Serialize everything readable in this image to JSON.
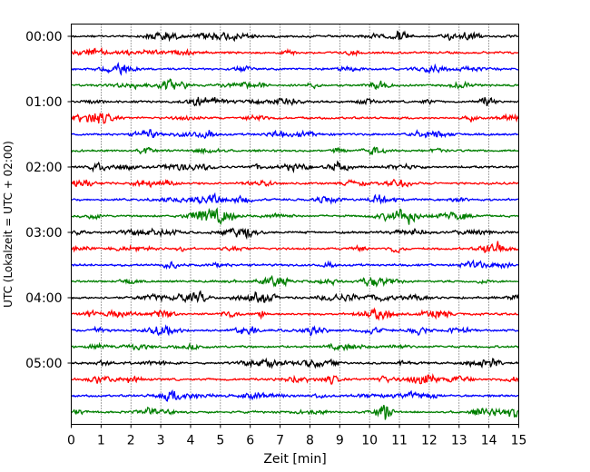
{
  "chart_data": {
    "type": "line",
    "title": "",
    "xlabel": "Zeit  [min]",
    "ylabel": "UTC (Lokalzeit = UTC + 02:00)",
    "xlim": [
      0,
      15
    ],
    "x_ticks": [
      "0",
      "1",
      "2",
      "3",
      "4",
      "5",
      "6",
      "7",
      "8",
      "9",
      "10",
      "11",
      "12",
      "13",
      "14",
      "15"
    ],
    "y_ticks": [
      "00:00",
      "01:00",
      "02:00",
      "03:00",
      "04:00",
      "05:00"
    ],
    "grid": "vertical dotted",
    "trace_count": 24,
    "trace_interval_minutes": 15,
    "colors": [
      "#000000",
      "#ff0000",
      "#0000ff",
      "#007f00"
    ]
  }
}
